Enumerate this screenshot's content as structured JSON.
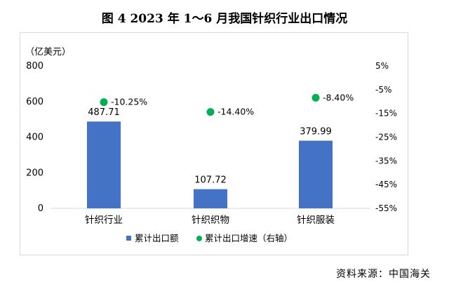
{
  "title": "图 4   2023 年 1～6 月我国针织行业出口情况",
  "source": "资料来源：中国海关",
  "chart_data": {
    "type": "bar",
    "categories": [
      "针织行业",
      "针织织物",
      "针织服装"
    ],
    "y_unit_label": "（亿美元）",
    "series": [
      {
        "name": "累计出口额",
        "type": "bar",
        "color": "#4472c4",
        "axis": "left",
        "values": [
          487.71,
          107.72,
          379.99
        ],
        "labels": [
          "487.71",
          "107.72",
          "379.99"
        ]
      },
      {
        "name": "累计出口增速（右轴）",
        "type": "scatter",
        "color": "#00b050",
        "axis": "right",
        "values": [
          -10.25,
          -14.4,
          -8.4
        ],
        "labels": [
          "-10.25%",
          "-14.40%",
          "-8.40%"
        ]
      }
    ],
    "y_left": {
      "min": 0,
      "max": 800,
      "ticks": [
        "0",
        "200",
        "400",
        "600",
        "800"
      ]
    },
    "y_right": {
      "min": -55,
      "max": 5,
      "ticks": [
        "5%",
        "-5%",
        "-15%",
        "-25%",
        "-35%",
        "-45%",
        "-55%"
      ]
    },
    "grid": false,
    "legend_position": "bottom"
  }
}
